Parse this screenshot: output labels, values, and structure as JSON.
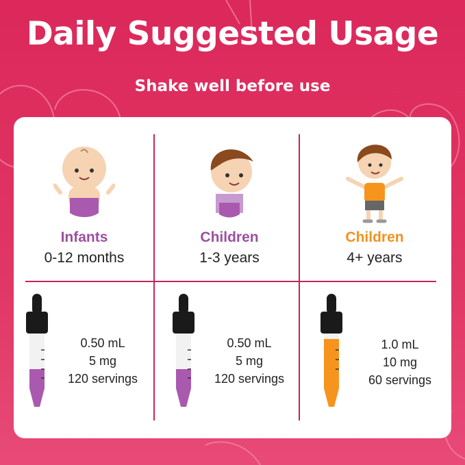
{
  "header": {
    "title": "Daily Suggested Usage",
    "subtitle": "Shake well before use"
  },
  "colors": {
    "background": "#dc285b",
    "divider": "#c3245a",
    "purple": "#9b4fa0",
    "orange": "#f0921f",
    "drop_purple": "#a95aae",
    "drop_orange": "#f7941d"
  },
  "groups": [
    {
      "label": "Infants",
      "age": "0-12 months",
      "label_color": "#9b4fa0",
      "icon": "baby-illustration",
      "dose": {
        "volume": "0.50 mL",
        "amount": "5 mg",
        "servings": "120 servings"
      },
      "fill_level": 0.45
    },
    {
      "label": "Children",
      "age": "1-3 years",
      "label_color": "#9b4fa0",
      "icon": "toddler-illustration",
      "dose": {
        "volume": "0.50 mL",
        "amount": "5 mg",
        "servings": "120 servings"
      },
      "fill_level": 0.45
    },
    {
      "label": "Children",
      "age": "4+ years",
      "label_color": "#f0921f",
      "icon": "child-illustration",
      "dose": {
        "volume": "1.0 mL",
        "amount": "10 mg",
        "servings": "60 servings"
      },
      "fill_level": 0.9
    }
  ]
}
